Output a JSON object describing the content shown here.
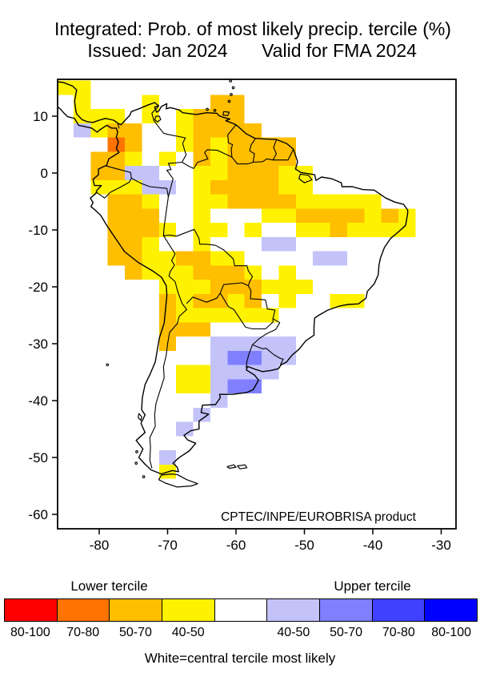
{
  "palette": {
    "r": "#FF0000",
    "o2": "#FF7300",
    "o": "#FFBE00",
    "y": "#FFF200",
    "w": "#FFFFFF",
    "b1": "#C3C3FA",
    "b2": "#7F7FFF",
    "b3": "#4040FF",
    "b4": "#0000FF"
  },
  "chart_data": {
    "type": "heatmap",
    "title": "Integrated: Prob. of most likely precip. tercile (%)",
    "subtitle_left": "Issued: Jan 2024",
    "subtitle_right": "Valid for FMA 2024",
    "annotation": "CPTEC/INPE/EUROBRISA product",
    "x_ticks": [
      -80,
      -70,
      -60,
      -50,
      -40,
      -30
    ],
    "y_ticks": [
      10,
      0,
      -10,
      -20,
      -30,
      -40,
      -50,
      -60
    ],
    "lon_range": [
      -86.1,
      -27.8
    ],
    "lat_range": [
      -62.5,
      16.5
    ],
    "cell_size_deg": 2.5,
    "grid": false,
    "categories": {
      "r": {
        "tercile": "lower",
        "prob": "80-100"
      },
      "o2": {
        "tercile": "lower",
        "prob": "70-80"
      },
      "o": {
        "tercile": "lower",
        "prob": "50-70"
      },
      "y": {
        "tercile": "lower",
        "prob": "40-50"
      },
      "w": {
        "tercile": "central",
        "prob": ""
      },
      "b1": {
        "tercile": "upper",
        "prob": "40-50"
      },
      "b2": {
        "tercile": "upper",
        "prob": "50-70"
      },
      "b3": {
        "tercile": "upper",
        "prob": "70-80"
      },
      "b4": {
        "tercile": "upper",
        "prob": "80-100"
      }
    },
    "cells": [
      [
        -85,
        15,
        "y"
      ],
      [
        -82.5,
        15,
        "y"
      ],
      [
        -82.5,
        12.5,
        "y"
      ],
      [
        -72.5,
        12.5,
        "y"
      ],
      [
        -62.5,
        12.5,
        "o"
      ],
      [
        -60,
        12.5,
        "o"
      ],
      [
        -82.5,
        10,
        "y"
      ],
      [
        -80,
        10,
        "y"
      ],
      [
        -77.5,
        10,
        "y"
      ],
      [
        -72.5,
        10,
        "y"
      ],
      [
        -67.5,
        10,
        "y"
      ],
      [
        -65,
        10,
        "o"
      ],
      [
        -62.5,
        10,
        "o"
      ],
      [
        -60,
        10,
        "o"
      ],
      [
        -82.5,
        7.5,
        "b1"
      ],
      [
        -80,
        7.5,
        "y"
      ],
      [
        -77.5,
        7.5,
        "o"
      ],
      [
        -75,
        7.5,
        "o"
      ],
      [
        -67.5,
        7.5,
        "y"
      ],
      [
        -65,
        7.5,
        "o"
      ],
      [
        -62.5,
        7.5,
        "o"
      ],
      [
        -60,
        7.5,
        "o"
      ],
      [
        -57.5,
        7.5,
        "o"
      ],
      [
        -77.5,
        5,
        "o2"
      ],
      [
        -75,
        5,
        "o"
      ],
      [
        -67.5,
        5,
        "y"
      ],
      [
        -65,
        5,
        "o"
      ],
      [
        -62.5,
        5,
        "y"
      ],
      [
        -60,
        5,
        "o"
      ],
      [
        -57.5,
        5,
        "o"
      ],
      [
        -55,
        5,
        "o"
      ],
      [
        -52.5,
        5,
        "o"
      ],
      [
        -80,
        2.5,
        "o"
      ],
      [
        -77.5,
        2.5,
        "o"
      ],
      [
        -75,
        2.5,
        "y"
      ],
      [
        -70,
        2.5,
        "y"
      ],
      [
        -65,
        2.5,
        "o"
      ],
      [
        -62.5,
        2.5,
        "y"
      ],
      [
        -60,
        2.5,
        "o"
      ],
      [
        -57.5,
        2.5,
        "o"
      ],
      [
        -55,
        2.5,
        "o"
      ],
      [
        -52.5,
        2.5,
        "o"
      ],
      [
        -80,
        0,
        "o"
      ],
      [
        -77.5,
        0,
        "o"
      ],
      [
        -75,
        0,
        "b1"
      ],
      [
        -72.5,
        0,
        "b1"
      ],
      [
        -65,
        0,
        "y"
      ],
      [
        -62.5,
        0,
        "y"
      ],
      [
        -60,
        0,
        "o"
      ],
      [
        -57.5,
        0,
        "o"
      ],
      [
        -55,
        0,
        "o"
      ],
      [
        -52.5,
        0,
        "y"
      ],
      [
        -50,
        0,
        "y"
      ],
      [
        -80,
        -2.5,
        "y"
      ],
      [
        -77.5,
        -2.5,
        "y"
      ],
      [
        -75,
        -2.5,
        "y"
      ],
      [
        -72.5,
        -2.5,
        "b1"
      ],
      [
        -70,
        -2.5,
        "b1"
      ],
      [
        -65,
        -2.5,
        "y"
      ],
      [
        -62.5,
        -2.5,
        "o"
      ],
      [
        -60,
        -2.5,
        "o"
      ],
      [
        -57.5,
        -2.5,
        "o"
      ],
      [
        -55,
        -2.5,
        "o"
      ],
      [
        -52.5,
        -2.5,
        "y"
      ],
      [
        -50,
        -2.5,
        "y"
      ],
      [
        -77.5,
        -5,
        "o"
      ],
      [
        -75,
        -5,
        "o"
      ],
      [
        -72.5,
        -5,
        "y"
      ],
      [
        -65,
        -5,
        "y"
      ],
      [
        -62.5,
        -5,
        "y"
      ],
      [
        -60,
        -5,
        "o"
      ],
      [
        -57.5,
        -5,
        "o"
      ],
      [
        -55,
        -5,
        "o"
      ],
      [
        -52.5,
        -5,
        "o"
      ],
      [
        -50,
        -5,
        "y"
      ],
      [
        -47.5,
        -5,
        "y"
      ],
      [
        -45,
        -5,
        "y"
      ],
      [
        -42.5,
        -5,
        "y"
      ],
      [
        -40,
        -5,
        "y"
      ],
      [
        -77.5,
        -7.5,
        "o"
      ],
      [
        -75,
        -7.5,
        "o"
      ],
      [
        -72.5,
        -7.5,
        "o"
      ],
      [
        -65,
        -7.5,
        "y"
      ],
      [
        -55,
        -7.5,
        "y"
      ],
      [
        -52.5,
        -7.5,
        "y"
      ],
      [
        -50,
        -7.5,
        "o"
      ],
      [
        -47.5,
        -7.5,
        "o"
      ],
      [
        -45,
        -7.5,
        "o"
      ],
      [
        -42.5,
        -7.5,
        "o"
      ],
      [
        -40,
        -7.5,
        "y"
      ],
      [
        -37.5,
        -7.5,
        "o"
      ],
      [
        -35,
        -7.5,
        "y"
      ],
      [
        -77.5,
        -10,
        "o"
      ],
      [
        -75,
        -10,
        "o"
      ],
      [
        -72.5,
        -10,
        "o"
      ],
      [
        -70,
        -10,
        "y"
      ],
      [
        -65,
        -10,
        "y"
      ],
      [
        -62.5,
        -10,
        "y"
      ],
      [
        -57.5,
        -10,
        "y"
      ],
      [
        -50,
        -10,
        "y"
      ],
      [
        -47.5,
        -10,
        "y"
      ],
      [
        -45,
        -10,
        "o"
      ],
      [
        -42.5,
        -10,
        "y"
      ],
      [
        -40,
        -10,
        "y"
      ],
      [
        -37.5,
        -10,
        "y"
      ],
      [
        -35,
        -10,
        "y"
      ],
      [
        -77.5,
        -12.5,
        "o"
      ],
      [
        -75,
        -12.5,
        "o"
      ],
      [
        -72.5,
        -12.5,
        "y"
      ],
      [
        -65,
        -12.5,
        "y"
      ],
      [
        -55,
        -12.5,
        "b1"
      ],
      [
        -52.5,
        -12.5,
        "b1"
      ],
      [
        -77.5,
        -15,
        "o"
      ],
      [
        -75,
        -15,
        "o"
      ],
      [
        -72.5,
        -15,
        "y"
      ],
      [
        -70,
        -15,
        "y"
      ],
      [
        -67.5,
        -15,
        "o"
      ],
      [
        -65,
        -15,
        "o"
      ],
      [
        -62.5,
        -15,
        "y"
      ],
      [
        -60,
        -15,
        "y"
      ],
      [
        -47.5,
        -15,
        "b1"
      ],
      [
        -45,
        -15,
        "b1"
      ],
      [
        -75,
        -17.5,
        "o"
      ],
      [
        -72.5,
        -17.5,
        "y"
      ],
      [
        -70,
        -17.5,
        "y"
      ],
      [
        -67.5,
        -17.5,
        "y"
      ],
      [
        -65,
        -17.5,
        "o"
      ],
      [
        -62.5,
        -17.5,
        "o"
      ],
      [
        -60,
        -17.5,
        "o"
      ],
      [
        -57.5,
        -17.5,
        "y"
      ],
      [
        -52.5,
        -17.5,
        "y"
      ],
      [
        -70,
        -20,
        "y"
      ],
      [
        -67.5,
        -20,
        "y"
      ],
      [
        -65,
        -20,
        "y"
      ],
      [
        -62.5,
        -20,
        "o"
      ],
      [
        -60,
        -20,
        "o"
      ],
      [
        -57.5,
        -20,
        "o"
      ],
      [
        -55,
        -20,
        "y"
      ],
      [
        -52.5,
        -20,
        "y"
      ],
      [
        -50,
        -20,
        "y"
      ],
      [
        -70,
        -22.5,
        "o"
      ],
      [
        -67.5,
        -22.5,
        "y"
      ],
      [
        -65,
        -22.5,
        "o"
      ],
      [
        -62.5,
        -22.5,
        "o"
      ],
      [
        -60,
        -22.5,
        "y"
      ],
      [
        -57.5,
        -22.5,
        "o"
      ],
      [
        -52.5,
        -22.5,
        "y"
      ],
      [
        -45,
        -22.5,
        "y"
      ],
      [
        -42.5,
        -22.5,
        "y"
      ],
      [
        -70,
        -25,
        "o"
      ],
      [
        -67.5,
        -25,
        "y"
      ],
      [
        -65,
        -25,
        "y"
      ],
      [
        -62.5,
        -25,
        "y"
      ],
      [
        -60,
        -25,
        "y"
      ],
      [
        -57.5,
        -25,
        "y"
      ],
      [
        -55,
        -25,
        "y"
      ],
      [
        -70,
        -27.5,
        "o"
      ],
      [
        -67.5,
        -27.5,
        "o"
      ],
      [
        -65,
        -27.5,
        "o"
      ],
      [
        -70,
        -30,
        "o"
      ],
      [
        -62.5,
        -30,
        "b1"
      ],
      [
        -60,
        -30,
        "b1"
      ],
      [
        -57.5,
        -30,
        "b1"
      ],
      [
        -55,
        -30,
        "b1"
      ],
      [
        -52.5,
        -30,
        "b1"
      ],
      [
        -62.5,
        -32.5,
        "b1"
      ],
      [
        -60,
        -32.5,
        "b2"
      ],
      [
        -57.5,
        -32.5,
        "b2"
      ],
      [
        -55,
        -32.5,
        "b1"
      ],
      [
        -52.5,
        -32.5,
        "b1"
      ],
      [
        -67.5,
        -35,
        "y"
      ],
      [
        -65,
        -35,
        "y"
      ],
      [
        -62.5,
        -35,
        "b1"
      ],
      [
        -60,
        -35,
        "b1"
      ],
      [
        -57.5,
        -35,
        "b1"
      ],
      [
        -55,
        -35,
        "b1"
      ],
      [
        -67.5,
        -37.5,
        "y"
      ],
      [
        -65,
        -37.5,
        "y"
      ],
      [
        -62.5,
        -37.5,
        "b1"
      ],
      [
        -60,
        -37.5,
        "b2"
      ],
      [
        -57.5,
        -37.5,
        "b2"
      ],
      [
        -62.5,
        -40,
        "b1"
      ],
      [
        -65,
        -42.5,
        "b1"
      ],
      [
        -67.5,
        -45,
        "b1"
      ],
      [
        -70,
        -50,
        "b1"
      ],
      [
        -70,
        -52.5,
        "y"
      ]
    ]
  },
  "legend": {
    "lower_label": "Lower tercile",
    "upper_label": "Upper tercile",
    "note": "White=central tercile most likely",
    "boxes": [
      {
        "key": "r",
        "label": "80-100"
      },
      {
        "key": "o2",
        "label": "70-80"
      },
      {
        "key": "o",
        "label": "50-70"
      },
      {
        "key": "y",
        "label": "40-50"
      },
      {
        "key": "w",
        "label": ""
      },
      {
        "key": "b1",
        "label": "40-50"
      },
      {
        "key": "b2",
        "label": "50-70"
      },
      {
        "key": "b3",
        "label": "70-80"
      },
      {
        "key": "b4",
        "label": "80-100"
      }
    ]
  }
}
